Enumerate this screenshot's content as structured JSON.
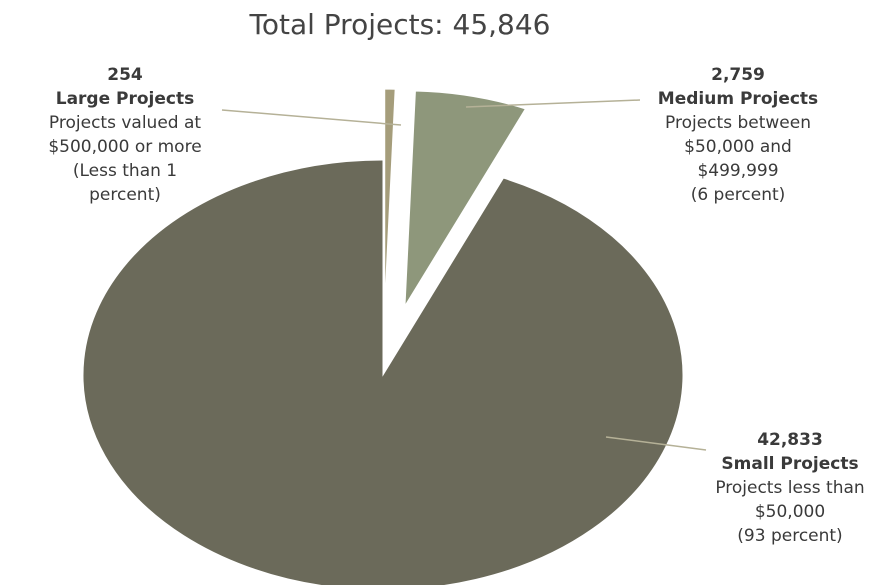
{
  "chart_data": {
    "type": "pie",
    "title": "Total Projects: 45,846",
    "categories": [
      "Large Projects",
      "Medium Projects",
      "Small Projects"
    ],
    "values": [
      254,
      2759,
      42833
    ],
    "value_labels": [
      "254",
      "2,759",
      "42,833"
    ],
    "descriptions": [
      [
        "Projects valued at",
        "$500,000 or more",
        "(Less than 1",
        "percent)"
      ],
      [
        "Projects between",
        "$50,000 and",
        "$499,999",
        "(6 percent)"
      ],
      [
        "Projects less than",
        "$50,000",
        "(93 percent)"
      ]
    ],
    "colors": [
      "#a59d7b",
      "#8e977b",
      "#6b6a5a"
    ]
  }
}
